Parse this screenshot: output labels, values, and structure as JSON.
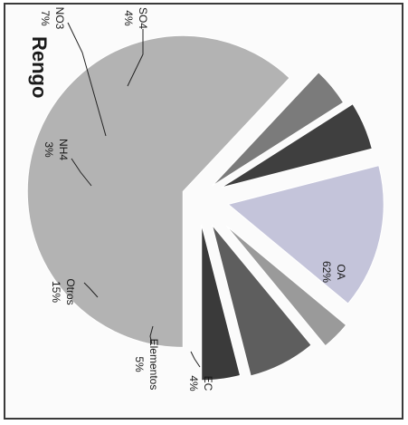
{
  "chart_data": {
    "type": "pie",
    "title": "Rengo",
    "slices": [
      {
        "name": "OA",
        "value": 62,
        "value_label": "62%",
        "color": "#b3b3b3"
      },
      {
        "name": "EC",
        "value": 4,
        "value_label": "4%",
        "color": "#7b7b7b"
      },
      {
        "name": "Elementos",
        "value": 5,
        "value_label": "5%",
        "color": "#3f3f3f"
      },
      {
        "name": "Otros",
        "value": 15,
        "value_label": "15%",
        "color": "#c4c4da"
      },
      {
        "name": "NH4",
        "value": 3,
        "value_label": "3%",
        "color": "#9a9a9a"
      },
      {
        "name": "NO3",
        "value": 7,
        "value_label": "7%",
        "color": "#5e5e5e"
      },
      {
        "name": "SO4",
        "value": 4,
        "value_label": "4%",
        "color": "#3a3a3a"
      }
    ],
    "legend": "none",
    "orientation": "rotated-90-ccw"
  }
}
